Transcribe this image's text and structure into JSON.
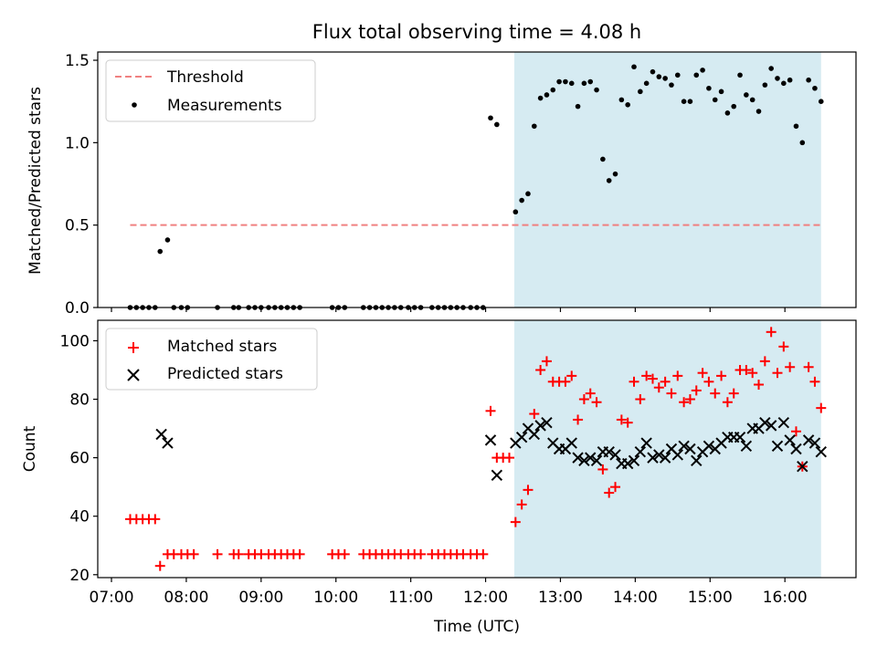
{
  "chart_data": [
    {
      "type": "scatter",
      "title": "Flux total observing time = 4.08 h",
      "xlabel": "",
      "ylabel": "Matched/Predicted stars",
      "ylim": [
        0,
        1.55
      ],
      "xlim": [
        "06:49",
        "16:57"
      ],
      "yticks": [
        "0.0",
        "0.5",
        "1.0",
        "1.5"
      ],
      "y_values": [
        0,
        0.5,
        1.0,
        1.5
      ],
      "shaded_region": {
        "start": "12:23",
        "end": "16:29",
        "color": "#add8e6"
      },
      "legend": {
        "position": "top-left",
        "entries": [
          "Threshold",
          "Measurements"
        ]
      },
      "threshold": {
        "name": "Threshold",
        "value": 0.5,
        "x_start": "07:15",
        "x_end": "16:29",
        "color": "#f08080",
        "style": "dashed"
      },
      "series": [
        {
          "name": "Measurements",
          "color": "#000000",
          "points": [
            [
              "07:15",
              0
            ],
            [
              "07:20",
              0
            ],
            [
              "07:25",
              0
            ],
            [
              "07:30",
              0
            ],
            [
              "07:35",
              0
            ],
            [
              "07:39",
              0.34
            ],
            [
              "07:45",
              0.41
            ],
            [
              "07:50",
              0
            ],
            [
              "07:56",
              0
            ],
            [
              "08:01",
              0
            ],
            [
              "08:25",
              0
            ],
            [
              "08:38",
              0
            ],
            [
              "08:42",
              0
            ],
            [
              "08:50",
              0
            ],
            [
              "08:55",
              0
            ],
            [
              "09:00",
              0
            ],
            [
              "09:06",
              0
            ],
            [
              "09:11",
              0
            ],
            [
              "09:16",
              0
            ],
            [
              "09:21",
              0
            ],
            [
              "09:26",
              0
            ],
            [
              "09:31",
              0
            ],
            [
              "09:57",
              0
            ],
            [
              "10:02",
              0
            ],
            [
              "10:07",
              0
            ],
            [
              "10:22",
              0
            ],
            [
              "10:27",
              0
            ],
            [
              "10:32",
              0
            ],
            [
              "10:37",
              0
            ],
            [
              "10:42",
              0
            ],
            [
              "10:47",
              0
            ],
            [
              "10:52",
              0
            ],
            [
              "10:58",
              0
            ],
            [
              "11:03",
              0
            ],
            [
              "11:08",
              0
            ],
            [
              "11:17",
              0
            ],
            [
              "11:22",
              0
            ],
            [
              "11:27",
              0
            ],
            [
              "11:32",
              0
            ],
            [
              "11:37",
              0
            ],
            [
              "11:42",
              0
            ],
            [
              "11:48",
              0
            ],
            [
              "11:53",
              0
            ],
            [
              "11:58",
              0
            ],
            [
              "12:04",
              1.15
            ],
            [
              "12:09",
              1.11
            ],
            [
              "12:24",
              0.58
            ],
            [
              "12:29",
              0.65
            ],
            [
              "12:34",
              0.69
            ],
            [
              "12:39",
              1.1
            ],
            [
              "12:44",
              1.27
            ],
            [
              "12:49",
              1.29
            ],
            [
              "12:54",
              1.32
            ],
            [
              "12:59",
              1.37
            ],
            [
              "13:04",
              1.37
            ],
            [
              "13:09",
              1.36
            ],
            [
              "13:14",
              1.22
            ],
            [
              "13:19",
              1.36
            ],
            [
              "13:24",
              1.37
            ],
            [
              "13:29",
              1.32
            ],
            [
              "13:34",
              0.9
            ],
            [
              "13:39",
              0.77
            ],
            [
              "13:44",
              0.81
            ],
            [
              "13:49",
              1.26
            ],
            [
              "13:54",
              1.23
            ],
            [
              "13:59",
              1.46
            ],
            [
              "14:04",
              1.31
            ],
            [
              "14:09",
              1.36
            ],
            [
              "14:14",
              1.43
            ],
            [
              "14:19",
              1.4
            ],
            [
              "14:24",
              1.39
            ],
            [
              "14:29",
              1.35
            ],
            [
              "14:34",
              1.41
            ],
            [
              "14:39",
              1.25
            ],
            [
              "14:44",
              1.25
            ],
            [
              "14:49",
              1.41
            ],
            [
              "14:54",
              1.44
            ],
            [
              "14:59",
              1.33
            ],
            [
              "15:04",
              1.26
            ],
            [
              "15:09",
              1.31
            ],
            [
              "15:14",
              1.18
            ],
            [
              "15:19",
              1.22
            ],
            [
              "15:24",
              1.41
            ],
            [
              "15:29",
              1.29
            ],
            [
              "15:34",
              1.26
            ],
            [
              "15:39",
              1.19
            ],
            [
              "15:44",
              1.35
            ],
            [
              "15:49",
              1.45
            ],
            [
              "15:54",
              1.39
            ],
            [
              "15:59",
              1.36
            ],
            [
              "16:04",
              1.38
            ],
            [
              "16:09",
              1.1
            ],
            [
              "16:14",
              1.0
            ],
            [
              "16:19",
              1.38
            ],
            [
              "16:24",
              1.33
            ],
            [
              "16:29",
              1.25
            ]
          ]
        }
      ],
      "grid": false
    },
    {
      "type": "scatter",
      "title": "",
      "xlabel": "Time (UTC)",
      "ylabel": "Count",
      "ylim": [
        19,
        107
      ],
      "xlim": [
        "06:49",
        "16:57"
      ],
      "yticks": [
        "20",
        "40",
        "60",
        "80",
        "100"
      ],
      "y_values": [
        20,
        40,
        60,
        80,
        100
      ],
      "xticks": [
        "07:00",
        "08:00",
        "09:00",
        "10:00",
        "11:00",
        "12:00",
        "13:00",
        "14:00",
        "15:00",
        "16:00"
      ],
      "shaded_region": {
        "start": "12:23",
        "end": "16:29",
        "color": "#add8e6"
      },
      "legend": {
        "position": "top-left",
        "entries": [
          "Matched stars",
          "Predicted stars"
        ]
      },
      "series": [
        {
          "name": "Matched stars",
          "marker": "+",
          "color": "#ff0000",
          "points": [
            [
              "07:15",
              39
            ],
            [
              "07:20",
              39
            ],
            [
              "07:25",
              39
            ],
            [
              "07:30",
              39
            ],
            [
              "07:35",
              39
            ],
            [
              "07:39",
              23
            ],
            [
              "07:45",
              27
            ],
            [
              "07:50",
              27
            ],
            [
              "07:56",
              27
            ],
            [
              "08:01",
              27
            ],
            [
              "08:06",
              27
            ],
            [
              "08:25",
              27
            ],
            [
              "08:38",
              27
            ],
            [
              "08:42",
              27
            ],
            [
              "08:50",
              27
            ],
            [
              "08:55",
              27
            ],
            [
              "09:00",
              27
            ],
            [
              "09:06",
              27
            ],
            [
              "09:11",
              27
            ],
            [
              "09:16",
              27
            ],
            [
              "09:21",
              27
            ],
            [
              "09:26",
              27
            ],
            [
              "09:31",
              27
            ],
            [
              "09:57",
              27
            ],
            [
              "10:02",
              27
            ],
            [
              "10:07",
              27
            ],
            [
              "10:22",
              27
            ],
            [
              "10:27",
              27
            ],
            [
              "10:32",
              27
            ],
            [
              "10:37",
              27
            ],
            [
              "10:42",
              27
            ],
            [
              "10:47",
              27
            ],
            [
              "10:52",
              27
            ],
            [
              "10:58",
              27
            ],
            [
              "11:03",
              27
            ],
            [
              "11:08",
              27
            ],
            [
              "11:17",
              27
            ],
            [
              "11:22",
              27
            ],
            [
              "11:27",
              27
            ],
            [
              "11:32",
              27
            ],
            [
              "11:37",
              27
            ],
            [
              "11:42",
              27
            ],
            [
              "11:48",
              27
            ],
            [
              "11:53",
              27
            ],
            [
              "11:58",
              27
            ],
            [
              "12:04",
              76
            ],
            [
              "12:09",
              60
            ],
            [
              "12:14",
              60
            ],
            [
              "12:19",
              60
            ],
            [
              "12:24",
              38
            ],
            [
              "12:29",
              44
            ],
            [
              "12:34",
              49
            ],
            [
              "12:39",
              75
            ],
            [
              "12:44",
              90
            ],
            [
              "12:49",
              93
            ],
            [
              "12:54",
              86
            ],
            [
              "12:59",
              86
            ],
            [
              "13:04",
              86
            ],
            [
              "13:09",
              88
            ],
            [
              "13:14",
              73
            ],
            [
              "13:19",
              80
            ],
            [
              "13:24",
              82
            ],
            [
              "13:29",
              79
            ],
            [
              "13:34",
              56
            ],
            [
              "13:39",
              48
            ],
            [
              "13:44",
              50
            ],
            [
              "13:49",
              73
            ],
            [
              "13:54",
              72
            ],
            [
              "13:59",
              86
            ],
            [
              "14:04",
              80
            ],
            [
              "14:09",
              88
            ],
            [
              "14:14",
              87
            ],
            [
              "14:19",
              84
            ],
            [
              "14:24",
              86
            ],
            [
              "14:29",
              82
            ],
            [
              "14:34",
              88
            ],
            [
              "14:39",
              79
            ],
            [
              "14:44",
              80
            ],
            [
              "14:49",
              83
            ],
            [
              "14:54",
              89
            ],
            [
              "14:59",
              86
            ],
            [
              "15:04",
              82
            ],
            [
              "15:09",
              88
            ],
            [
              "15:14",
              79
            ],
            [
              "15:19",
              82
            ],
            [
              "15:24",
              90
            ],
            [
              "15:29",
              90
            ],
            [
              "15:34",
              89
            ],
            [
              "15:39",
              85
            ],
            [
              "15:44",
              93
            ],
            [
              "15:49",
              103
            ],
            [
              "15:54",
              89
            ],
            [
              "15:59",
              98
            ],
            [
              "16:04",
              91
            ],
            [
              "16:09",
              69
            ],
            [
              "16:14",
              57
            ],
            [
              "16:19",
              91
            ],
            [
              "16:24",
              86
            ],
            [
              "16:29",
              77
            ]
          ]
        },
        {
          "name": "Predicted stars",
          "marker": "x",
          "color": "#000000",
          "points": [
            [
              "07:40",
              68
            ],
            [
              "07:45",
              65
            ],
            [
              "12:04",
              66
            ],
            [
              "12:09",
              54
            ],
            [
              "12:24",
              65
            ],
            [
              "12:29",
              67
            ],
            [
              "12:34",
              70
            ],
            [
              "12:39",
              68
            ],
            [
              "12:44",
              71
            ],
            [
              "12:49",
              72
            ],
            [
              "12:54",
              65
            ],
            [
              "12:59",
              63
            ],
            [
              "13:04",
              63
            ],
            [
              "13:09",
              65
            ],
            [
              "13:14",
              60
            ],
            [
              "13:19",
              59
            ],
            [
              "13:24",
              60
            ],
            [
              "13:29",
              59
            ],
            [
              "13:34",
              62
            ],
            [
              "13:39",
              62
            ],
            [
              "13:44",
              61
            ],
            [
              "13:49",
              58
            ],
            [
              "13:54",
              58
            ],
            [
              "13:59",
              59
            ],
            [
              "14:04",
              62
            ],
            [
              "14:09",
              65
            ],
            [
              "14:14",
              60
            ],
            [
              "14:19",
              61
            ],
            [
              "14:24",
              60
            ],
            [
              "14:29",
              63
            ],
            [
              "14:34",
              61
            ],
            [
              "14:39",
              64
            ],
            [
              "14:44",
              63
            ],
            [
              "14:49",
              59
            ],
            [
              "14:54",
              62
            ],
            [
              "14:59",
              64
            ],
            [
              "15:04",
              63
            ],
            [
              "15:09",
              65
            ],
            [
              "15:14",
              67
            ],
            [
              "15:19",
              67
            ],
            [
              "15:24",
              67
            ],
            [
              "15:29",
              64
            ],
            [
              "15:34",
              70
            ],
            [
              "15:39",
              70
            ],
            [
              "15:44",
              72
            ],
            [
              "15:49",
              71
            ],
            [
              "15:54",
              64
            ],
            [
              "15:59",
              72
            ],
            [
              "16:04",
              66
            ],
            [
              "16:09",
              63
            ],
            [
              "16:14",
              57
            ],
            [
              "16:19",
              66
            ],
            [
              "16:24",
              65
            ],
            [
              "16:29",
              62
            ]
          ]
        }
      ],
      "grid": false
    }
  ]
}
